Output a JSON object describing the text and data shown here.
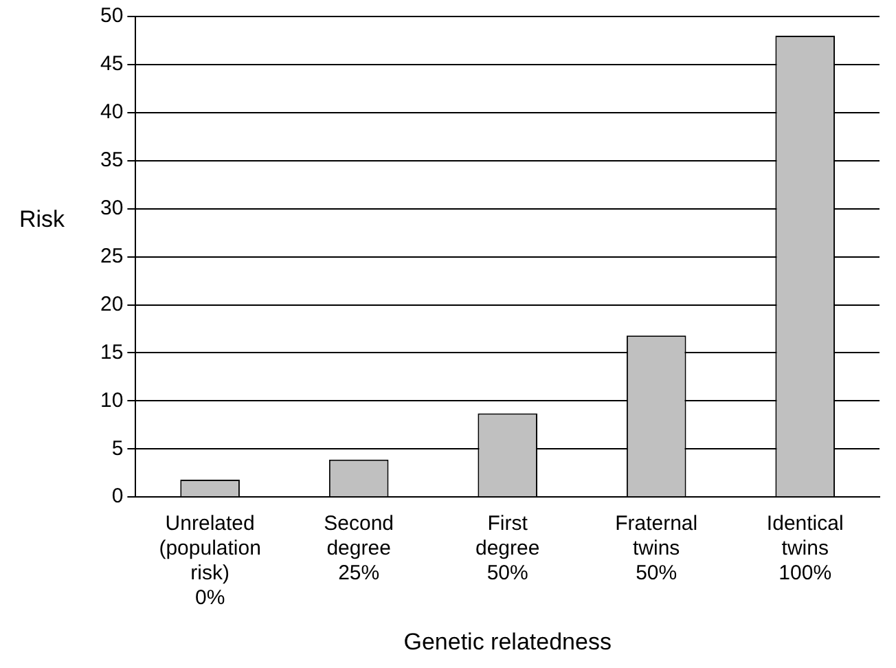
{
  "chart_data": {
    "type": "bar",
    "xlabel": "Genetic relatedness",
    "ylabel": "Risk",
    "categories": [
      "Unrelated\n(population\nrisk)\n0%",
      "Second\ndegree\n25%",
      "First\ndegree\n50%",
      "Fraternal\ntwins\n50%",
      "Identical\ntwins\n100%"
    ],
    "values": [
      1.8,
      3.9,
      8.7,
      16.8,
      48
    ],
    "color": "#c0c0c0",
    "ylim": [
      0,
      50
    ],
    "yticks": [
      0,
      5,
      10,
      15,
      20,
      25,
      30,
      35,
      40,
      45,
      50
    ],
    "grid": "y",
    "legend": false
  }
}
